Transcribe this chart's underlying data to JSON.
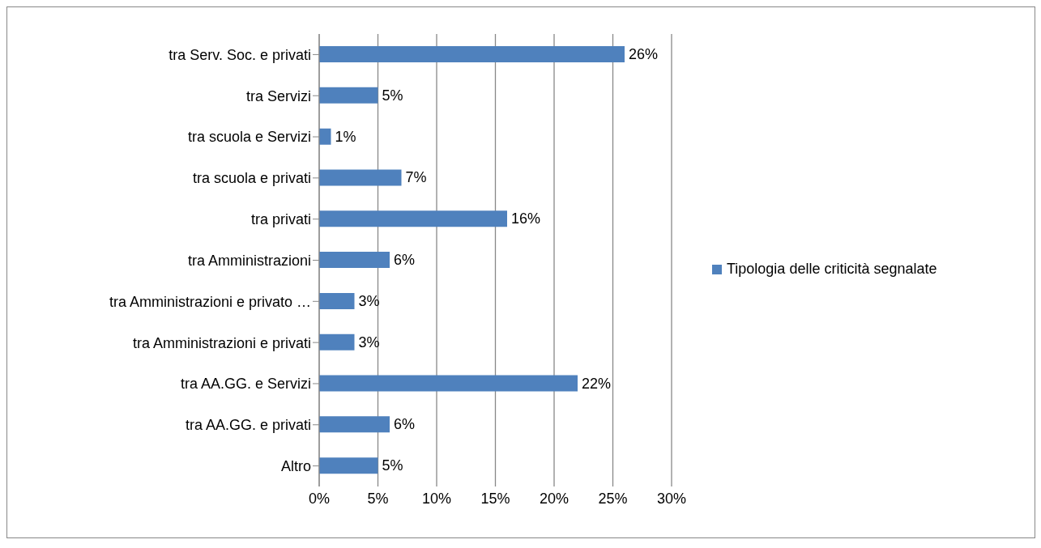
{
  "chart_data": {
    "type": "bar",
    "orientation": "horizontal",
    "categories": [
      "tra Serv. Soc. e privati",
      "tra Servizi",
      "tra scuola e Servizi",
      "tra scuola e privati",
      "tra privati",
      "tra Amministrazioni",
      "tra Amministrazioni e privato …",
      "tra Amministrazioni e privati",
      "tra AA.GG. e Servizi",
      "tra AA.GG. e privati",
      "Altro"
    ],
    "series": [
      {
        "name": "Tipologia delle criticità segnalate",
        "color": "#4f81bd",
        "values": [
          26,
          5,
          1,
          7,
          16,
          6,
          3,
          3,
          22,
          6,
          5
        ],
        "value_labels": [
          "26%",
          "5%",
          "1%",
          "7%",
          "16%",
          "6%",
          "3%",
          "3%",
          "22%",
          "6%",
          "5%"
        ]
      }
    ],
    "xlim": [
      0,
      30
    ],
    "xticks": [
      {
        "value": 0,
        "label": "0%"
      },
      {
        "value": 5,
        "label": "5%"
      },
      {
        "value": 10,
        "label": "10%"
      },
      {
        "value": 15,
        "label": "15%"
      },
      {
        "value": 20,
        "label": "20%"
      },
      {
        "value": 25,
        "label": "25%"
      },
      {
        "value": 30,
        "label": "30%"
      }
    ],
    "grid": "x",
    "legend": "right"
  }
}
